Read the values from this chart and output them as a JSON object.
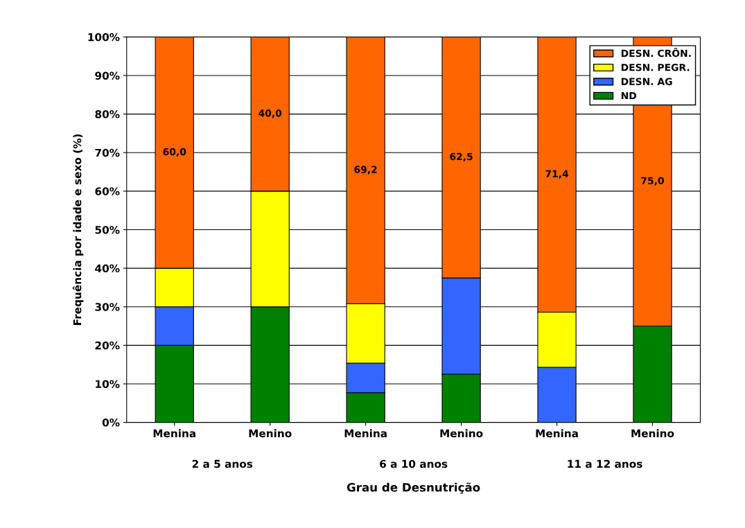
{
  "chart_data": {
    "type": "bar",
    "stacked": true,
    "ylabel": "Frequência por idade e sexo (%)",
    "xlabel": "Grau de Desnutrição",
    "categories": [
      "Menina",
      "Menino",
      "Menina",
      "Menino",
      "Menina",
      "Menino"
    ],
    "annotations": [
      "2 a 5 anos",
      "6 a 10 anos",
      "11 a 12 anos"
    ],
    "series": [
      {
        "name": "ND",
        "color": "#008000",
        "values": [
          20,
          30,
          7.7,
          12.5,
          0,
          25
        ]
      },
      {
        "name": "DESN. AG",
        "color": "#3366ff",
        "values": [
          10,
          0,
          7.7,
          25,
          14.3,
          0
        ]
      },
      {
        "name": "DESN. PEGR.",
        "color": "#ffff00",
        "values": [
          10,
          30,
          15.4,
          0,
          14.3,
          0
        ]
      },
      {
        "name": "DESN. CRÔN.",
        "color": "#ff6600",
        "values": [
          60,
          40,
          69.2,
          62.5,
          71.4,
          75
        ],
        "value_labels": [
          "60,0",
          "40,0",
          "69,2",
          "62,5",
          "71,4",
          "75,0"
        ]
      }
    ],
    "ylim": [
      0,
      100
    ],
    "yticks": [
      {
        "value": 0,
        "label": "0%"
      },
      {
        "value": 10,
        "label": "10%"
      },
      {
        "value": 20,
        "label": "20%"
      },
      {
        "value": 30,
        "label": "30%"
      },
      {
        "value": 40,
        "label": "40%"
      },
      {
        "value": 50,
        "label": "50%"
      },
      {
        "value": 60,
        "label": "60%"
      },
      {
        "value": 70,
        "label": "70%"
      },
      {
        "value": 80,
        "label": "80%"
      },
      {
        "value": 90,
        "label": "90%"
      },
      {
        "value": 100,
        "label": "100%"
      }
    ],
    "grid": "y",
    "legend": "top right"
  }
}
